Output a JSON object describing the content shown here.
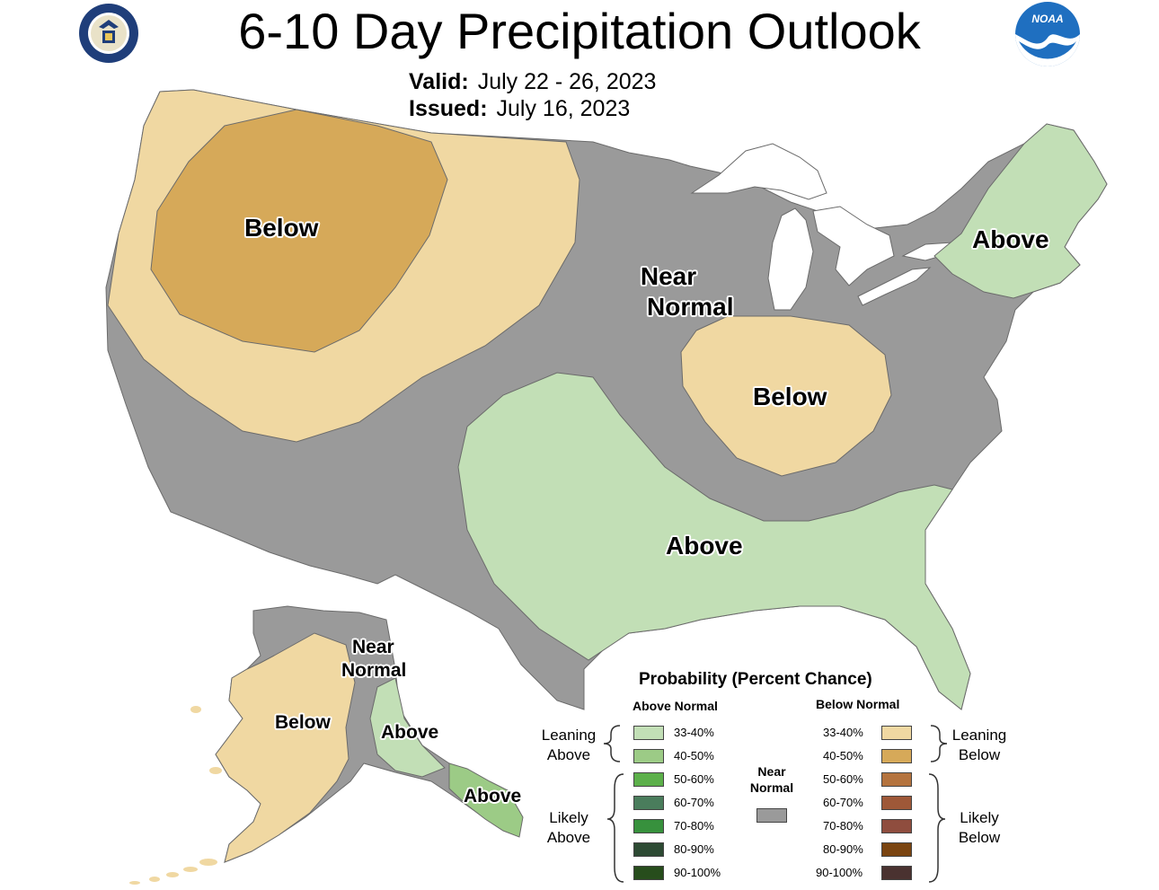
{
  "header": {
    "title": "6-10 Day Precipitation Outlook",
    "valid_label": "Valid:",
    "valid_value": "July 22 - 26, 2023",
    "issued_label": "Issued:",
    "issued_value": "July 16, 2023"
  },
  "logos": {
    "left": "department-of-commerce-seal-icon",
    "right": "noaa-logo-icon"
  },
  "map_labels": {
    "west_below": "Below",
    "central_near_line1": "Near",
    "central_near_line2": "Normal",
    "ohio_valley_below": "Below",
    "south_above": "Above",
    "northeast_above": "Above",
    "alaska_near_line1": "Near",
    "alaska_near_line2": "Normal",
    "alaska_below": "Below",
    "alaska_above": "Above",
    "alaska_panhandle_above": "Above"
  },
  "colors": {
    "near_normal": "#9a9a9a",
    "above_33_40": "#c2dfb6",
    "below_33_40": "#f0d8a2",
    "below_40_50": "#d6a959",
    "lakes": "#ffffff",
    "borders": "#6b6b6b"
  },
  "legend": {
    "title": "Probability (Percent Chance)",
    "above_header": "Above Normal",
    "below_header": "Below Normal",
    "leaning_above_1": "Leaning",
    "leaning_above_2": "Above",
    "likely_above_1": "Likely",
    "likely_above_2": "Above",
    "leaning_below_1": "Leaning",
    "leaning_below_2": "Below",
    "likely_below_1": "Likely",
    "likely_below_2": "Below",
    "near_1": "Near",
    "near_2": "Normal",
    "above_items": [
      {
        "label": "33-40%",
        "color": "#c2dfb6"
      },
      {
        "label": "40-50%",
        "color": "#9ccb86"
      },
      {
        "label": "50-60%",
        "color": "#5cb04a"
      },
      {
        "label": "60-70%",
        "color": "#4a7d5c"
      },
      {
        "label": "70-80%",
        "color": "#37913d"
      },
      {
        "label": "80-90%",
        "color": "#2d4a33"
      },
      {
        "label": "90-100%",
        "color": "#274d1c"
      }
    ],
    "below_items": [
      {
        "label": "33-40%",
        "color": "#f0d8a2"
      },
      {
        "label": "40-50%",
        "color": "#d6a959"
      },
      {
        "label": "50-60%",
        "color": "#b4733e"
      },
      {
        "label": "60-70%",
        "color": "#9e5838"
      },
      {
        "label": "70-80%",
        "color": "#8f4d3e"
      },
      {
        "label": "80-90%",
        "color": "#7a4410"
      },
      {
        "label": "90-100%",
        "color": "#4a3230"
      }
    ]
  }
}
